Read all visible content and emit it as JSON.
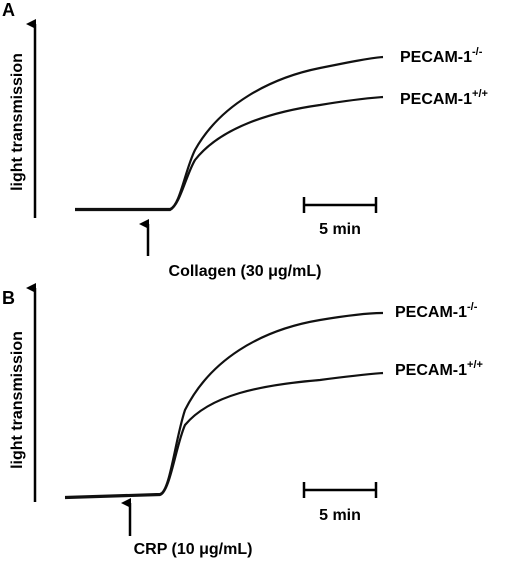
{
  "panels": [
    {
      "letter": "A",
      "y_label": "light transmission",
      "traces": [
        {
          "label": "PECAM-1",
          "superscript": "-/-"
        },
        {
          "label": "PECAM-1",
          "superscript": "+/+"
        }
      ],
      "scale_bar": "5 min",
      "agonist": "Collagen (30 μg/mL)"
    },
    {
      "letter": "B",
      "y_label": "light transmission",
      "traces": [
        {
          "label": "PECAM-1",
          "superscript": "-/-"
        },
        {
          "label": "PECAM-1",
          "superscript": "+/+"
        }
      ],
      "scale_bar": "5 min",
      "agonist": "CRP (10 μg/mL)"
    }
  ]
}
